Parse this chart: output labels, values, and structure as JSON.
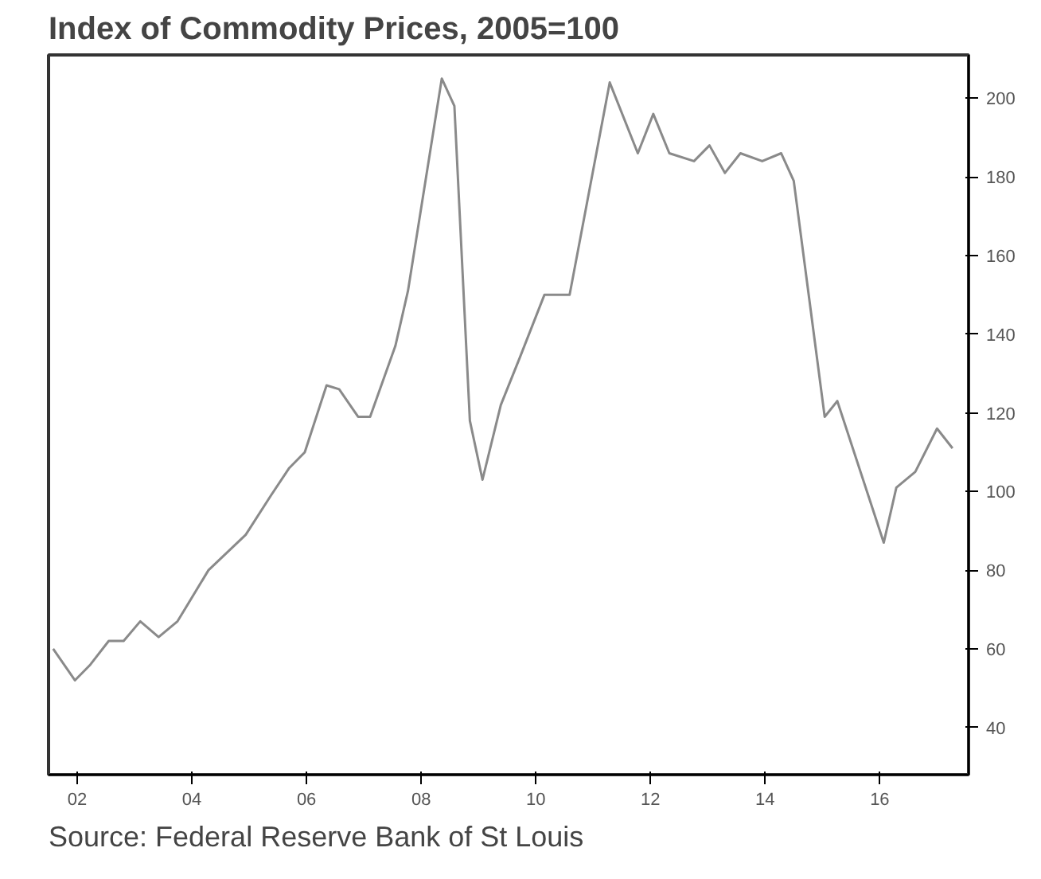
{
  "chart_data": {
    "type": "line",
    "title": "Index of Commodity Prices, 2005=100",
    "annotations": [
      "Source: Federal Reserve Bank of St Louis"
    ],
    "xlim": [
      2001.5,
      2017.55
    ],
    "ylim": [
      28,
      211
    ],
    "xticks": [
      {
        "value": 2002,
        "label": "02"
      },
      {
        "value": 2004,
        "label": "04"
      },
      {
        "value": 2006,
        "label": "06"
      },
      {
        "value": 2008,
        "label": "08"
      },
      {
        "value": 2010,
        "label": "10"
      },
      {
        "value": 2012,
        "label": "12"
      },
      {
        "value": 2014,
        "label": "14"
      },
      {
        "value": 2016,
        "label": "16"
      }
    ],
    "yticks": [
      40,
      60,
      80,
      100,
      120,
      140,
      160,
      180,
      200
    ],
    "grid": false,
    "series": [
      {
        "color": "#8a8a8a",
        "x": [
          2001.58,
          2001.96,
          2002.23,
          2002.55,
          2002.81,
          2003.1,
          2003.42,
          2003.75,
          2004.29,
          2004.94,
          2005.38,
          2005.7,
          2005.97,
          2006.35,
          2006.57,
          2006.9,
          2007.11,
          2007.55,
          2007.77,
          2008.36,
          2008.58,
          2008.85,
          2009.07,
          2009.39,
          2009.72,
          2010.15,
          2010.59,
          2011.29,
          2011.78,
          2012.05,
          2012.33,
          2012.76,
          2013.03,
          2013.3,
          2013.57,
          2013.95,
          2014.28,
          2014.5,
          2015.04,
          2015.26,
          2016.07,
          2016.29,
          2016.62,
          2017.0,
          2017.27
        ],
        "values": [
          60,
          52,
          56,
          62,
          62,
          67,
          63,
          67,
          80,
          89,
          99,
          106,
          110,
          127,
          126,
          119,
          119,
          137,
          151,
          205,
          198,
          118,
          103,
          122,
          134,
          150,
          150,
          204,
          186,
          196,
          186,
          184,
          188,
          181,
          186,
          184,
          186,
          179,
          119,
          123,
          87,
          101,
          105,
          116,
          111
        ]
      }
    ]
  }
}
